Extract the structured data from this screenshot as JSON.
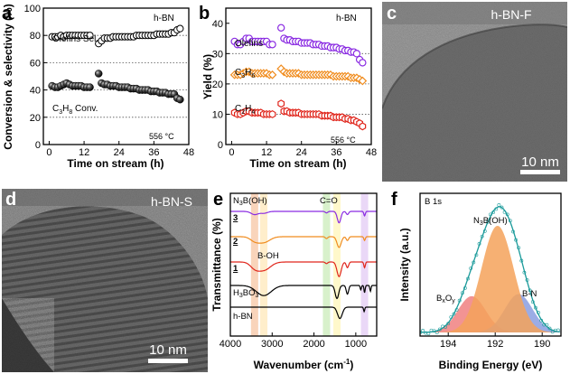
{
  "panels": {
    "a": {
      "letter": "a",
      "tag": "h-BN",
      "ylabel": "Conversion & selectivity (%)",
      "xlabel": "Time on stream (h)",
      "temperature": "556 °C",
      "series_labels": {
        "olefin": "Olefins Sel.",
        "conv_pre": "C",
        "conv_sub1": "3",
        "conv_mid": "H",
        "conv_sub2": "8",
        "conv_post": " Conv."
      }
    },
    "b": {
      "letter": "b",
      "tag": "h-BN",
      "ylabel": "Yield (%)",
      "xlabel": "Time on stream (h)",
      "temperature": "556 °C",
      "series_labels": {
        "olefins": "Olefins",
        "c3h6_pre": "C",
        "c3h6_sub1": "3",
        "c3h6_mid": "H",
        "c3h6_sub2": "6",
        "c2h4_pre": "C",
        "c2h4_sub1": "2",
        "c2h4_mid": "H",
        "c2h4_sub2": "4"
      }
    },
    "c": {
      "letter": "c",
      "tag": "h-BN-F",
      "scale": "10 nm"
    },
    "d": {
      "letter": "d",
      "tag": "h-BN-S",
      "scale": "10 nm"
    },
    "e": {
      "letter": "e",
      "ylabel": "Transmittance (%)",
      "xlabel_pre": "Wavenumber (cm",
      "xlabel_sup": "-1",
      "xlabel_post": ")",
      "annotations": {
        "n3boh": "N",
        "n3boh_sub": "3",
        "n3boh_post": "B(OH)",
        "co": "C=O",
        "boh": "B-OH"
      },
      "trace_labels": [
        "3",
        "2",
        "1"
      ],
      "h3bo3": {
        "pre": "H",
        "sub1": "3",
        "mid": "BO",
        "sub2": "3"
      },
      "hbn": "h-BN"
    },
    "f": {
      "letter": "f",
      "tag": "B 1s",
      "ylabel": "Intensity (a.u.)",
      "xlabel": "Binding Energy (eV)",
      "peaks": {
        "main_pre": "N",
        "main_sub": "3",
        "main_post": "B(OH)",
        "bxoy_pre": "B",
        "bxoy_sub1": "x",
        "bxoy_mid": "O",
        "bxoy_sub2": "y",
        "bn": "B-N"
      }
    }
  },
  "chart_data": [
    {
      "type": "scatter",
      "panel": "a",
      "xlabel": "Time on stream (h)",
      "ylabel": "Conversion & selectivity (%)",
      "xlim": [
        -2,
        48
      ],
      "ylim": [
        0,
        100
      ],
      "xticks": [
        0,
        12,
        24,
        36,
        48
      ],
      "yticks": [
        0,
        20,
        40,
        60,
        80,
        100
      ],
      "gridlines_y": [
        20,
        40,
        60,
        80
      ],
      "series": [
        {
          "name": "Olefins Sel.",
          "marker": "open-circle",
          "x": [
            1,
            2,
            3,
            4,
            5,
            6,
            7,
            8,
            9,
            10,
            11,
            12,
            13,
            14,
            17,
            18,
            19,
            20,
            21,
            22,
            23,
            24,
            25,
            26,
            27,
            28,
            29,
            30,
            31,
            32,
            33,
            34,
            35,
            36,
            37,
            38,
            39,
            40,
            41,
            42,
            43,
            44,
            45
          ],
          "y": [
            79,
            79,
            79,
            80,
            79,
            80,
            80,
            80,
            80,
            80,
            80,
            80,
            80,
            80,
            74,
            76,
            78,
            78,
            78,
            79,
            79,
            79,
            79,
            79,
            79,
            79,
            79,
            80,
            80,
            80,
            80,
            80,
            80,
            80,
            81,
            81,
            81,
            81,
            81,
            82,
            82,
            84,
            85
          ]
        },
        {
          "name": "C3H8 Conv.",
          "marker": "filled-sphere",
          "x": [
            1,
            2,
            3,
            4,
            5,
            6,
            7,
            8,
            9,
            10,
            11,
            12,
            13,
            14,
            17,
            18,
            19,
            20,
            21,
            22,
            23,
            24,
            25,
            26,
            27,
            28,
            29,
            30,
            31,
            32,
            33,
            34,
            35,
            36,
            37,
            38,
            39,
            40,
            41,
            42,
            43,
            44,
            45
          ],
          "y": [
            43,
            42,
            42,
            43,
            44,
            45,
            44,
            43,
            43,
            43,
            43,
            42,
            42,
            42,
            52,
            45,
            44,
            44,
            43,
            43,
            43,
            42,
            42,
            42,
            42,
            41,
            41,
            41,
            40,
            40,
            40,
            40,
            39,
            39,
            39,
            38,
            38,
            38,
            37,
            37,
            37,
            34,
            33
          ]
        }
      ]
    },
    {
      "type": "scatter",
      "panel": "b",
      "xlabel": "Time on stream (h)",
      "ylabel": "Yield (%)",
      "xlim": [
        -2,
        48
      ],
      "ylim": [
        0,
        45
      ],
      "xticks": [
        0,
        12,
        24,
        36,
        48
      ],
      "yticks": [
        0,
        10,
        20,
        30,
        40
      ],
      "gridlines_y": [
        10,
        20,
        30
      ],
      "series": [
        {
          "name": "Olefins",
          "color": "#8a2be2",
          "marker": "open-circle",
          "x": [
            1,
            2,
            3,
            4,
            5,
            6,
            7,
            8,
            9,
            10,
            11,
            12,
            13,
            14,
            17,
            18,
            19,
            20,
            21,
            22,
            23,
            24,
            25,
            26,
            27,
            28,
            29,
            30,
            31,
            32,
            33,
            34,
            35,
            36,
            37,
            38,
            39,
            40,
            41,
            42,
            43,
            44,
            45
          ],
          "y": [
            34,
            33,
            33,
            34,
            35,
            35,
            34,
            34,
            34,
            34,
            34,
            34,
            33,
            33,
            38.5,
            35,
            34.5,
            34.5,
            34,
            34,
            34,
            33.5,
            33.5,
            33.5,
            33.5,
            33,
            33,
            33,
            32.5,
            32.5,
            32.5,
            32,
            32,
            32,
            31.5,
            31.5,
            31,
            31,
            30.5,
            30.5,
            30,
            28,
            27
          ]
        },
        {
          "name": "C3H6",
          "color": "#f08c1e",
          "marker": "open-diamond",
          "x": [
            1,
            2,
            3,
            4,
            5,
            6,
            7,
            8,
            9,
            10,
            11,
            12,
            13,
            14,
            17,
            18,
            19,
            20,
            21,
            22,
            23,
            24,
            25,
            26,
            27,
            28,
            29,
            30,
            31,
            32,
            33,
            34,
            35,
            36,
            37,
            38,
            39,
            40,
            41,
            42,
            43,
            44,
            45
          ],
          "y": [
            23,
            23,
            23,
            23.5,
            24,
            24,
            23.5,
            23.5,
            23.5,
            23.5,
            23.5,
            23.5,
            23,
            23,
            25,
            24,
            23.5,
            23.5,
            23.5,
            23.5,
            23.5,
            23,
            23,
            23,
            23,
            23,
            23,
            23,
            23,
            23,
            23,
            23,
            22.5,
            22.5,
            22.5,
            22.5,
            22.5,
            22.5,
            22,
            22,
            22,
            21.5,
            21
          ]
        },
        {
          "name": "C2H4",
          "color": "#e0261c",
          "marker": "open-hexagon",
          "x": [
            1,
            2,
            3,
            4,
            5,
            6,
            7,
            8,
            9,
            10,
            11,
            12,
            13,
            14,
            17,
            18,
            19,
            20,
            21,
            22,
            23,
            24,
            25,
            26,
            27,
            28,
            29,
            30,
            31,
            32,
            33,
            34,
            35,
            36,
            37,
            38,
            39,
            40,
            41,
            42,
            43,
            44,
            45
          ],
          "y": [
            10.5,
            10,
            10,
            10.5,
            11,
            11,
            10.5,
            10.5,
            10.5,
            10.5,
            10,
            10,
            10,
            10,
            13.5,
            11,
            11,
            10.5,
            10.5,
            10.5,
            10.5,
            10,
            10,
            10,
            10,
            10,
            10,
            10,
            9.5,
            9.5,
            9.5,
            9.5,
            9,
            9,
            9,
            9,
            8.5,
            8.5,
            8,
            8,
            7.5,
            7,
            6
          ]
        }
      ]
    },
    {
      "type": "line",
      "panel": "e",
      "xlabel": "Wavenumber (cm-1)",
      "ylabel": "Transmittance (%)",
      "xlim": [
        4000,
        500
      ],
      "xticks": [
        4000,
        3000,
        2000,
        1000
      ],
      "highlight_bands": [
        {
          "center": 3420,
          "color": "#f4b183"
        },
        {
          "center": 3200,
          "color": "#ffe0a0"
        },
        {
          "center": 1700,
          "color": "#b8e6a0"
        },
        {
          "center": 1450,
          "color": "#fff2a0"
        },
        {
          "center": 790,
          "color": "#d8b8f0"
        }
      ],
      "series": [
        {
          "name": "3",
          "color": "#8a2be2",
          "offset": 0
        },
        {
          "name": "2",
          "color": "#f08c1e",
          "offset": 1
        },
        {
          "name": "1",
          "color": "#e0261c",
          "offset": 2
        },
        {
          "name": "H3BO3",
          "color": "#000000",
          "offset": 3
        },
        {
          "name": "h-BN",
          "color": "#000000",
          "offset": 4
        }
      ]
    },
    {
      "type": "area",
      "panel": "f",
      "xlabel": "Binding Energy (eV)",
      "ylabel": "Intensity (a.u.)",
      "xlim": [
        195.2,
        189.2
      ],
      "xticks": [
        194,
        192,
        190
      ],
      "series": [
        {
          "name": "N3B(OH)",
          "color": "#f5a25a",
          "center": 191.9,
          "height": 1.0,
          "fwhm": 1.6
        },
        {
          "name": "BxOy",
          "color": "#f08080",
          "center": 193.0,
          "height": 0.34,
          "fwhm": 1.4
        },
        {
          "name": "B-N",
          "color": "#8a9ee0",
          "center": 191.0,
          "height": 0.36,
          "fwhm": 1.4
        }
      ]
    }
  ],
  "colors": {
    "axis": "#000000",
    "grid": "#444444",
    "olefin_a": "#000000",
    "conv_a": "#111111",
    "tem_bg": "#6e6e6e",
    "tem_dark": "#2f2f2f",
    "fit": "#1a9a9a"
  }
}
